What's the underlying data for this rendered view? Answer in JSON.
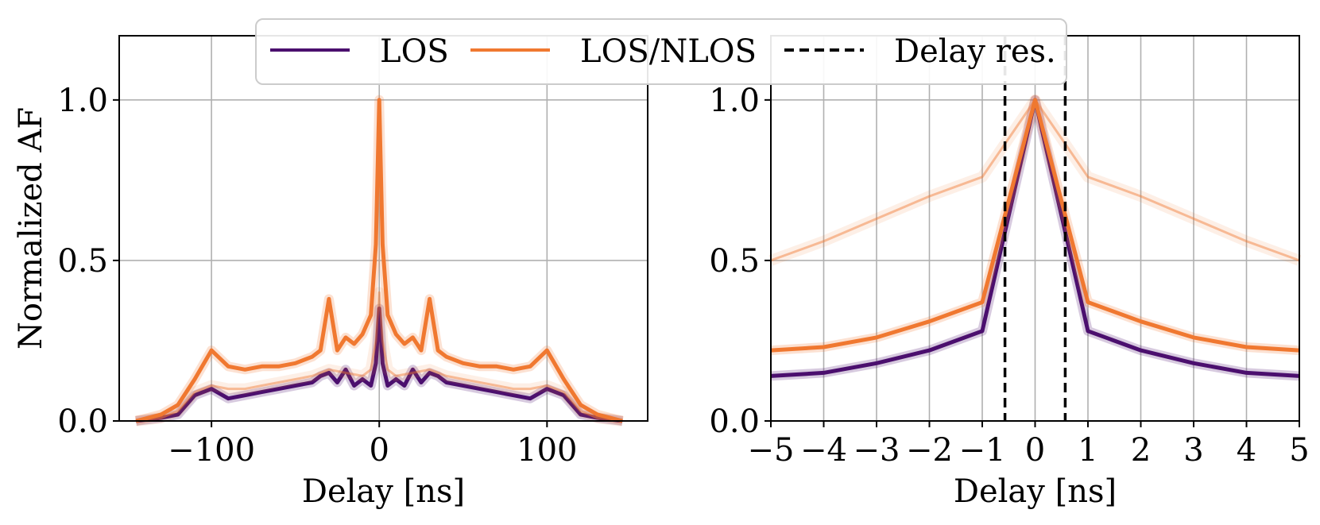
{
  "legend": {
    "items": [
      {
        "label": "LOS",
        "color": "#4b0f6e",
        "style": "solid"
      },
      {
        "label": "LOS/NLOS",
        "color": "#f07830",
        "style": "solid"
      },
      {
        "label": "Delay res.",
        "color": "#000000",
        "style": "dashed"
      }
    ]
  },
  "chart_data": [
    {
      "type": "line",
      "panel": "left",
      "xlabel": "Delay [ns]",
      "ylabel": "Normalized AF",
      "xlim": [
        -155,
        160
      ],
      "ylim": [
        0,
        1.2
      ],
      "xticks": [
        -100,
        0,
        100
      ],
      "xtick_labels": [
        "−100",
        "0",
        "100"
      ],
      "yticks": [
        0.0,
        0.5,
        1.0
      ],
      "ytick_labels": [
        "0.0",
        "0.5",
        "1.0"
      ],
      "grid": true,
      "series": [
        {
          "name": "LOS",
          "color": "#4b0f6e",
          "x": [
            -145,
            -130,
            -120,
            -110,
            -100,
            -90,
            -80,
            -70,
            -60,
            -50,
            -40,
            -35,
            -30,
            -25,
            -20,
            -15,
            -10,
            -5,
            -2,
            0,
            2,
            5,
            10,
            15,
            20,
            25,
            30,
            35,
            40,
            50,
            60,
            70,
            80,
            90,
            100,
            110,
            120,
            130,
            145
          ],
          "y": [
            0.0,
            0.01,
            0.02,
            0.08,
            0.1,
            0.07,
            0.08,
            0.09,
            0.1,
            0.11,
            0.12,
            0.14,
            0.15,
            0.12,
            0.16,
            0.11,
            0.13,
            0.11,
            0.18,
            0.35,
            0.18,
            0.11,
            0.13,
            0.11,
            0.16,
            0.12,
            0.15,
            0.14,
            0.12,
            0.11,
            0.1,
            0.09,
            0.08,
            0.07,
            0.1,
            0.08,
            0.02,
            0.01,
            0.0
          ]
        },
        {
          "name": "LOS/NLOS",
          "color": "#f07830",
          "x": [
            -145,
            -130,
            -120,
            -110,
            -100,
            -90,
            -80,
            -70,
            -60,
            -50,
            -40,
            -35,
            -30,
            -25,
            -20,
            -15,
            -10,
            -5,
            -2,
            0,
            2,
            5,
            10,
            15,
            20,
            25,
            30,
            35,
            40,
            50,
            60,
            70,
            80,
            90,
            100,
            110,
            120,
            130,
            145
          ],
          "y": [
            0.0,
            0.02,
            0.05,
            0.13,
            0.22,
            0.17,
            0.16,
            0.17,
            0.17,
            0.18,
            0.2,
            0.22,
            0.38,
            0.22,
            0.26,
            0.24,
            0.27,
            0.33,
            0.55,
            1.0,
            0.55,
            0.33,
            0.27,
            0.24,
            0.26,
            0.22,
            0.38,
            0.22,
            0.2,
            0.18,
            0.17,
            0.17,
            0.16,
            0.17,
            0.22,
            0.13,
            0.05,
            0.02,
            0.0
          ]
        },
        {
          "name": "LOS/NLOS (lower band)",
          "color": "#f07830",
          "x": [
            -145,
            -130,
            -120,
            -110,
            -100,
            -90,
            -80,
            -70,
            -60,
            -50,
            -40,
            -30,
            -20,
            -10,
            -5,
            -2,
            0,
            2,
            5,
            10,
            20,
            30,
            40,
            50,
            60,
            70,
            80,
            90,
            100,
            110,
            120,
            130,
            145
          ],
          "y": [
            0.0,
            0.01,
            0.03,
            0.09,
            0.11,
            0.1,
            0.1,
            0.11,
            0.12,
            0.13,
            0.14,
            0.16,
            0.15,
            0.14,
            0.16,
            0.25,
            0.4,
            0.25,
            0.16,
            0.14,
            0.15,
            0.16,
            0.14,
            0.13,
            0.12,
            0.11,
            0.1,
            0.1,
            0.11,
            0.09,
            0.03,
            0.01,
            0.0
          ]
        }
      ]
    },
    {
      "type": "line",
      "panel": "right",
      "xlabel": "Delay [ns]",
      "ylabel": "",
      "xlim": [
        -5,
        5
      ],
      "ylim": [
        0,
        1.2
      ],
      "xticks": [
        -5,
        -4,
        -3,
        -2,
        -1,
        0,
        1,
        2,
        3,
        4,
        5
      ],
      "xtick_labels": [
        "−5",
        "−4",
        "−3",
        "−2",
        "−1",
        "0",
        "1",
        "2",
        "3",
        "4",
        "5"
      ],
      "yticks": [
        0.0,
        0.5,
        1.0
      ],
      "ytick_labels": [
        "0.0",
        "0.5",
        "1.0"
      ],
      "grid": true,
      "vlines": [
        -0.57,
        0.57
      ],
      "series": [
        {
          "name": "LOS",
          "color": "#4b0f6e",
          "x": [
            -5,
            -4,
            -3,
            -2,
            -1,
            0,
            1,
            2,
            3,
            4,
            5
          ],
          "y": [
            0.14,
            0.15,
            0.18,
            0.22,
            0.28,
            1.0,
            0.28,
            0.22,
            0.18,
            0.15,
            0.14
          ]
        },
        {
          "name": "LOS/NLOS",
          "color": "#f07830",
          "x": [
            -5,
            -4,
            -3,
            -2,
            -1,
            0,
            1,
            2,
            3,
            4,
            5
          ],
          "y": [
            0.22,
            0.23,
            0.26,
            0.31,
            0.37,
            1.0,
            0.37,
            0.31,
            0.26,
            0.23,
            0.22
          ]
        },
        {
          "name": "LOS/NLOS (upper band)",
          "color": "#f07830",
          "x": [
            -5,
            -4,
            -3,
            -2,
            -1,
            0,
            1,
            2,
            3,
            4,
            5
          ],
          "y": [
            0.5,
            0.56,
            0.63,
            0.7,
            0.76,
            1.0,
            0.76,
            0.7,
            0.63,
            0.56,
            0.5
          ]
        }
      ]
    }
  ]
}
